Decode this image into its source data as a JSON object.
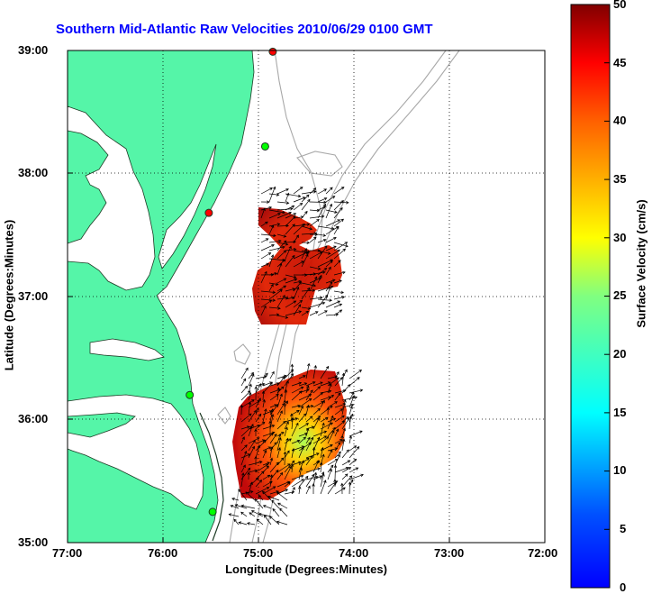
{
  "title": "Southern Mid-Atlantic Raw Velocities 2010/06/29 0100 GMT",
  "map": {
    "x_label": "Longitude (Degrees:Minutes)",
    "y_label": "Latitude (Degrees:Minutes)",
    "x_ticks": [
      "77:00",
      "76:00",
      "75:00",
      "74:00",
      "73:00",
      "72:00"
    ],
    "y_ticks": [
      "39:00",
      "38:00",
      "37:00",
      "36:00",
      "35:00"
    ],
    "lon_range": [
      -77,
      -72
    ],
    "lat_range": [
      35,
      39
    ],
    "land_color": "#55f5a8",
    "grid": "dotted"
  },
  "colorbar": {
    "label": "Surface Velocity (cm/s)",
    "ticks": [
      "50",
      "45",
      "40",
      "35",
      "30",
      "25",
      "20",
      "15",
      "10",
      "5",
      "0"
    ],
    "range": [
      0,
      50
    ],
    "colormap": "jet"
  },
  "stations": [
    {
      "lon": -74.85,
      "lat": 38.99,
      "color": "#ff0000"
    },
    {
      "lon": -74.93,
      "lat": 38.22,
      "color": "#00ff00"
    },
    {
      "lon": -75.52,
      "lat": 37.68,
      "color": "#ff0000"
    },
    {
      "lon": -75.72,
      "lat": 36.2,
      "color": "#00ff00"
    },
    {
      "lon": -75.48,
      "lat": 35.25,
      "color": "#00ff00"
    }
  ]
}
